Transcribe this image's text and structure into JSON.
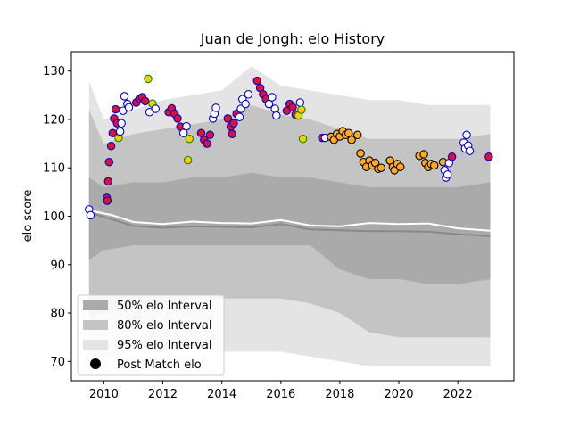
{
  "chart_data": {
    "type": "scatter",
    "title": "Juan de Jongh: elo History",
    "xlabel": "",
    "ylabel": "elo score",
    "xlim": [
      2008.9,
      2023.9
    ],
    "ylim": [
      66,
      134
    ],
    "x_ticks": [
      2010,
      2012,
      2014,
      2016,
      2018,
      2020,
      2022
    ],
    "y_ticks": [
      70,
      80,
      90,
      100,
      110,
      120,
      130
    ],
    "grid": false,
    "legend": {
      "placement": "bottom-left",
      "entries": [
        {
          "label": "50% elo Interval",
          "color": "#aaaaaa"
        },
        {
          "label": "80% elo Interval",
          "color": "#c4c4c4"
        },
        {
          "label": "95% elo Interval",
          "color": "#e4e4e4"
        },
        {
          "label": "Post Match elo",
          "color": "#000000"
        }
      ]
    },
    "bands": {
      "x": [
        2009.5,
        2010,
        2011,
        2012,
        2013,
        2014,
        2015,
        2016,
        2017,
        2018,
        2019,
        2020,
        2021,
        2022,
        2023.1
      ],
      "p95_upper": [
        128,
        120,
        122,
        124,
        125,
        126,
        131,
        127,
        126,
        125,
        124,
        124,
        123,
        123,
        123
      ],
      "p80_upper": [
        122,
        115,
        117,
        118,
        119,
        120,
        123,
        121,
        120,
        118,
        116,
        116,
        116,
        116,
        117
      ],
      "p50_upper": [
        108,
        106,
        107,
        107,
        108,
        108,
        109,
        108,
        108,
        107,
        106,
        106,
        106,
        106,
        107
      ],
      "p50_lower": [
        91,
        93,
        94,
        94,
        94,
        94,
        94,
        94,
        94,
        89,
        87,
        87,
        86,
        86,
        87
      ],
      "p80_lower": [
        79,
        80,
        81,
        82,
        83,
        83,
        83,
        83,
        82,
        80,
        76,
        75,
        75,
        75,
        75
      ],
      "p95_lower": [
        71,
        71,
        72,
        72,
        73,
        72,
        72,
        72,
        71,
        70,
        69,
        69,
        69,
        69,
        69
      ]
    },
    "lines": [
      {
        "color": "#888888",
        "x": [
          2009.5,
          2010.3,
          2011,
          2012,
          2013,
          2014,
          2015,
          2016,
          2017,
          2018,
          2019,
          2020,
          2021,
          2022,
          2023.1
        ],
        "y": [
          100.8,
          99.3,
          98.0,
          97.6,
          97.9,
          97.8,
          97.7,
          98.4,
          97.3,
          97.1,
          96.9,
          96.9,
          96.8,
          96.3,
          95.9
        ]
      },
      {
        "color": "#ffffff",
        "x": [
          2009.5,
          2010.3,
          2011,
          2012,
          2013,
          2014,
          2015,
          2016,
          2017,
          2018,
          2019,
          2020,
          2021,
          2022,
          2023.1
        ],
        "y": [
          101.2,
          100.2,
          98.8,
          98.4,
          98.9,
          98.6,
          98.5,
          99.2,
          98.1,
          97.9,
          98.6,
          98.4,
          98.5,
          97.5,
          97.0
        ]
      }
    ],
    "points": [
      {
        "x": 2009.5,
        "y": 101.4,
        "fill": "#ffffff",
        "edge": "#0000cc"
      },
      {
        "x": 2009.55,
        "y": 100.2,
        "fill": "#ffffff",
        "edge": "#0000cc"
      },
      {
        "x": 2010.1,
        "y": 103.8,
        "fill": "#dd1133",
        "edge": "#0000cc"
      },
      {
        "x": 2010.12,
        "y": 103.2,
        "fill": "#dd1133",
        "edge": "#0000cc"
      },
      {
        "x": 2010.15,
        "y": 107.2,
        "fill": "#dd1133",
        "edge": "#0000cc"
      },
      {
        "x": 2010.18,
        "y": 111.2,
        "fill": "#dd1133",
        "edge": "#0000cc"
      },
      {
        "x": 2010.25,
        "y": 114.5,
        "fill": "#dd1133",
        "edge": "#0000cc"
      },
      {
        "x": 2010.3,
        "y": 117.2,
        "fill": "#dd1133",
        "edge": "#0000cc"
      },
      {
        "x": 2010.35,
        "y": 120.2,
        "fill": "#dd1133",
        "edge": "#0000cc"
      },
      {
        "x": 2010.4,
        "y": 122.1,
        "fill": "#dd1133",
        "edge": "#0000cc"
      },
      {
        "x": 2010.45,
        "y": 119.2,
        "fill": "#dd1133",
        "edge": "#0000cc"
      },
      {
        "x": 2010.5,
        "y": 116.2,
        "fill": "#ffcc00",
        "edge": "#118811"
      },
      {
        "x": 2010.55,
        "y": 117.5,
        "fill": "#ffffff",
        "edge": "#0000cc"
      },
      {
        "x": 2010.6,
        "y": 119.2,
        "fill": "#ffffff",
        "edge": "#0000cc"
      },
      {
        "x": 2010.65,
        "y": 121.8,
        "fill": "#ffffff",
        "edge": "#0000cc"
      },
      {
        "x": 2010.7,
        "y": 124.8,
        "fill": "#ffffff",
        "edge": "#0000cc"
      },
      {
        "x": 2010.8,
        "y": 123.2,
        "fill": "#ffffff",
        "edge": "#0000cc"
      },
      {
        "x": 2010.85,
        "y": 122.5,
        "fill": "#ffffff",
        "edge": "#0000cc"
      },
      {
        "x": 2011.1,
        "y": 123.5,
        "fill": "#dd1133",
        "edge": "#0000cc"
      },
      {
        "x": 2011.2,
        "y": 124.2,
        "fill": "#dd1133",
        "edge": "#0000cc"
      },
      {
        "x": 2011.3,
        "y": 124.6,
        "fill": "#dd1133",
        "edge": "#0000cc"
      },
      {
        "x": 2011.4,
        "y": 123.8,
        "fill": "#dd1133",
        "edge": "#0000cc"
      },
      {
        "x": 2011.5,
        "y": 128.4,
        "fill": "#ffcc00",
        "edge": "#118811"
      },
      {
        "x": 2011.55,
        "y": 121.5,
        "fill": "#ffffff",
        "edge": "#0000cc"
      },
      {
        "x": 2011.65,
        "y": 123.3,
        "fill": "#ffcc00",
        "edge": "#118811"
      },
      {
        "x": 2011.75,
        "y": 122.2,
        "fill": "#ffffff",
        "edge": "#0000cc"
      },
      {
        "x": 2012.2,
        "y": 121.5,
        "fill": "#dd1133",
        "edge": "#0000cc"
      },
      {
        "x": 2012.3,
        "y": 122.3,
        "fill": "#dd1133",
        "edge": "#0000cc"
      },
      {
        "x": 2012.4,
        "y": 121.2,
        "fill": "#dd1133",
        "edge": "#0000cc"
      },
      {
        "x": 2012.5,
        "y": 120.2,
        "fill": "#dd1133",
        "edge": "#0000cc"
      },
      {
        "x": 2012.6,
        "y": 118.5,
        "fill": "#dd1133",
        "edge": "#0000cc"
      },
      {
        "x": 2012.7,
        "y": 117.2,
        "fill": "#ffffff",
        "edge": "#0000cc"
      },
      {
        "x": 2012.8,
        "y": 118.6,
        "fill": "#ffffff",
        "edge": "#0000cc"
      },
      {
        "x": 2012.85,
        "y": 111.6,
        "fill": "#ffcc00",
        "edge": "#118811"
      },
      {
        "x": 2012.9,
        "y": 116.0,
        "fill": "#ffcc00",
        "edge": "#118811"
      },
      {
        "x": 2013.3,
        "y": 117.2,
        "fill": "#dd1133",
        "edge": "#0000cc"
      },
      {
        "x": 2013.4,
        "y": 115.8,
        "fill": "#dd1133",
        "edge": "#0000cc"
      },
      {
        "x": 2013.5,
        "y": 115.0,
        "fill": "#dd1133",
        "edge": "#0000cc"
      },
      {
        "x": 2013.6,
        "y": 116.8,
        "fill": "#dd1133",
        "edge": "#0000cc"
      },
      {
        "x": 2013.7,
        "y": 120.2,
        "fill": "#ffffff",
        "edge": "#0000cc"
      },
      {
        "x": 2013.75,
        "y": 121.2,
        "fill": "#ffffff",
        "edge": "#0000cc"
      },
      {
        "x": 2013.8,
        "y": 122.4,
        "fill": "#ffffff",
        "edge": "#0000cc"
      },
      {
        "x": 2014.2,
        "y": 120.2,
        "fill": "#dd1133",
        "edge": "#0000cc"
      },
      {
        "x": 2014.3,
        "y": 118.5,
        "fill": "#dd1133",
        "edge": "#0000cc"
      },
      {
        "x": 2014.35,
        "y": 117.0,
        "fill": "#dd1133",
        "edge": "#0000cc"
      },
      {
        "x": 2014.4,
        "y": 119.2,
        "fill": "#dd1133",
        "edge": "#0000cc"
      },
      {
        "x": 2014.5,
        "y": 121.2,
        "fill": "#dd1133",
        "edge": "#0000cc"
      },
      {
        "x": 2014.6,
        "y": 120.5,
        "fill": "#ffffff",
        "edge": "#0000cc"
      },
      {
        "x": 2014.65,
        "y": 122.2,
        "fill": "#ffffff",
        "edge": "#0000cc"
      },
      {
        "x": 2014.7,
        "y": 124.2,
        "fill": "#ffffff",
        "edge": "#0000cc"
      },
      {
        "x": 2014.8,
        "y": 123.2,
        "fill": "#ffffff",
        "edge": "#0000cc"
      },
      {
        "x": 2014.9,
        "y": 125.2,
        "fill": "#ffffff",
        "edge": "#0000cc"
      },
      {
        "x": 2015.2,
        "y": 128.0,
        "fill": "#dd1133",
        "edge": "#0000cc"
      },
      {
        "x": 2015.3,
        "y": 126.5,
        "fill": "#dd1133",
        "edge": "#0000cc"
      },
      {
        "x": 2015.4,
        "y": 125.2,
        "fill": "#dd1133",
        "edge": "#0000cc"
      },
      {
        "x": 2015.5,
        "y": 124.2,
        "fill": "#dd1133",
        "edge": "#0000cc"
      },
      {
        "x": 2015.6,
        "y": 123.2,
        "fill": "#ffffff",
        "edge": "#0000cc"
      },
      {
        "x": 2015.7,
        "y": 124.6,
        "fill": "#ffffff",
        "edge": "#0000cc"
      },
      {
        "x": 2015.8,
        "y": 122.2,
        "fill": "#ffffff",
        "edge": "#0000cc"
      },
      {
        "x": 2015.85,
        "y": 120.8,
        "fill": "#ffffff",
        "edge": "#0000cc"
      },
      {
        "x": 2016.2,
        "y": 121.8,
        "fill": "#dd1133",
        "edge": "#0000cc"
      },
      {
        "x": 2016.3,
        "y": 123.2,
        "fill": "#dd1133",
        "edge": "#0000cc"
      },
      {
        "x": 2016.4,
        "y": 122.5,
        "fill": "#dd1133",
        "edge": "#0000cc"
      },
      {
        "x": 2016.5,
        "y": 121.0,
        "fill": "#dd1133",
        "edge": "#0000cc"
      },
      {
        "x": 2016.6,
        "y": 120.8,
        "fill": "#ffcc00",
        "edge": "#118811"
      },
      {
        "x": 2016.65,
        "y": 123.5,
        "fill": "#ffffff",
        "edge": "#0000cc"
      },
      {
        "x": 2016.7,
        "y": 122.0,
        "fill": "#ffcc00",
        "edge": "#118811"
      },
      {
        "x": 2016.75,
        "y": 116.0,
        "fill": "#ffcc00",
        "edge": "#118811"
      },
      {
        "x": 2017.4,
        "y": 116.2,
        "fill": "#dd1133",
        "edge": "#0000cc"
      },
      {
        "x": 2017.5,
        "y": 116.2,
        "fill": "#ffffff",
        "edge": "#0000cc"
      },
      {
        "x": 2017.7,
        "y": 116.4,
        "fill": "#ffaa22",
        "edge": "#000000"
      },
      {
        "x": 2017.8,
        "y": 115.8,
        "fill": "#ffaa22",
        "edge": "#000000"
      },
      {
        "x": 2017.9,
        "y": 117.0,
        "fill": "#ffaa22",
        "edge": "#000000"
      },
      {
        "x": 2018.0,
        "y": 116.5,
        "fill": "#ffaa22",
        "edge": "#000000"
      },
      {
        "x": 2018.1,
        "y": 117.6,
        "fill": "#ffaa22",
        "edge": "#000000"
      },
      {
        "x": 2018.2,
        "y": 116.8,
        "fill": "#ffaa22",
        "edge": "#000000"
      },
      {
        "x": 2018.3,
        "y": 117.2,
        "fill": "#ffaa22",
        "edge": "#000000"
      },
      {
        "x": 2018.4,
        "y": 115.8,
        "fill": "#ffaa22",
        "edge": "#000000"
      },
      {
        "x": 2018.6,
        "y": 116.8,
        "fill": "#ffaa22",
        "edge": "#000000"
      },
      {
        "x": 2018.7,
        "y": 113.0,
        "fill": "#ffaa22",
        "edge": "#000000"
      },
      {
        "x": 2018.8,
        "y": 111.2,
        "fill": "#ffaa22",
        "edge": "#000000"
      },
      {
        "x": 2018.9,
        "y": 110.2,
        "fill": "#ffaa22",
        "edge": "#000000"
      },
      {
        "x": 2019.0,
        "y": 111.5,
        "fill": "#ffaa22",
        "edge": "#000000"
      },
      {
        "x": 2019.1,
        "y": 110.5,
        "fill": "#ffaa22",
        "edge": "#000000"
      },
      {
        "x": 2019.2,
        "y": 111.0,
        "fill": "#ffaa22",
        "edge": "#000000"
      },
      {
        "x": 2019.3,
        "y": 109.8,
        "fill": "#ffaa22",
        "edge": "#000000"
      },
      {
        "x": 2019.4,
        "y": 110.0,
        "fill": "#ffaa22",
        "edge": "#000000"
      },
      {
        "x": 2019.7,
        "y": 111.5,
        "fill": "#ffaa22",
        "edge": "#000000"
      },
      {
        "x": 2019.8,
        "y": 110.2,
        "fill": "#ffaa22",
        "edge": "#000000"
      },
      {
        "x": 2019.85,
        "y": 109.5,
        "fill": "#ffaa22",
        "edge": "#000000"
      },
      {
        "x": 2019.95,
        "y": 110.8,
        "fill": "#ffaa22",
        "edge": "#000000"
      },
      {
        "x": 2020.05,
        "y": 110.2,
        "fill": "#ffaa22",
        "edge": "#000000"
      },
      {
        "x": 2020.7,
        "y": 112.5,
        "fill": "#ffaa22",
        "edge": "#000000"
      },
      {
        "x": 2020.85,
        "y": 112.8,
        "fill": "#ffaa22",
        "edge": "#000000"
      },
      {
        "x": 2020.9,
        "y": 111.0,
        "fill": "#ffaa22",
        "edge": "#000000"
      },
      {
        "x": 2021.0,
        "y": 110.2,
        "fill": "#ffaa22",
        "edge": "#000000"
      },
      {
        "x": 2021.1,
        "y": 110.8,
        "fill": "#ffaa22",
        "edge": "#000000"
      },
      {
        "x": 2021.2,
        "y": 110.5,
        "fill": "#ffaa22",
        "edge": "#000000"
      },
      {
        "x": 2021.5,
        "y": 111.2,
        "fill": "#ffaa22",
        "edge": "#000000"
      },
      {
        "x": 2021.55,
        "y": 109.5,
        "fill": "#ffffff",
        "edge": "#0000cc"
      },
      {
        "x": 2021.6,
        "y": 108.0,
        "fill": "#ffffff",
        "edge": "#0000cc"
      },
      {
        "x": 2021.65,
        "y": 108.6,
        "fill": "#ffffff",
        "edge": "#0000cc"
      },
      {
        "x": 2021.7,
        "y": 111.0,
        "fill": "#ffffff",
        "edge": "#0000cc"
      },
      {
        "x": 2021.8,
        "y": 112.3,
        "fill": "#dd1133",
        "edge": "#0000cc"
      },
      {
        "x": 2022.2,
        "y": 115.2,
        "fill": "#ffffff",
        "edge": "#0000cc"
      },
      {
        "x": 2022.25,
        "y": 114.0,
        "fill": "#ffffff",
        "edge": "#0000cc"
      },
      {
        "x": 2022.3,
        "y": 116.8,
        "fill": "#ffffff",
        "edge": "#0000cc"
      },
      {
        "x": 2022.35,
        "y": 114.6,
        "fill": "#ffffff",
        "edge": "#0000cc"
      },
      {
        "x": 2022.4,
        "y": 113.5,
        "fill": "#ffffff",
        "edge": "#0000cc"
      },
      {
        "x": 2023.05,
        "y": 112.3,
        "fill": "#dd1133",
        "edge": "#0000cc"
      }
    ]
  }
}
